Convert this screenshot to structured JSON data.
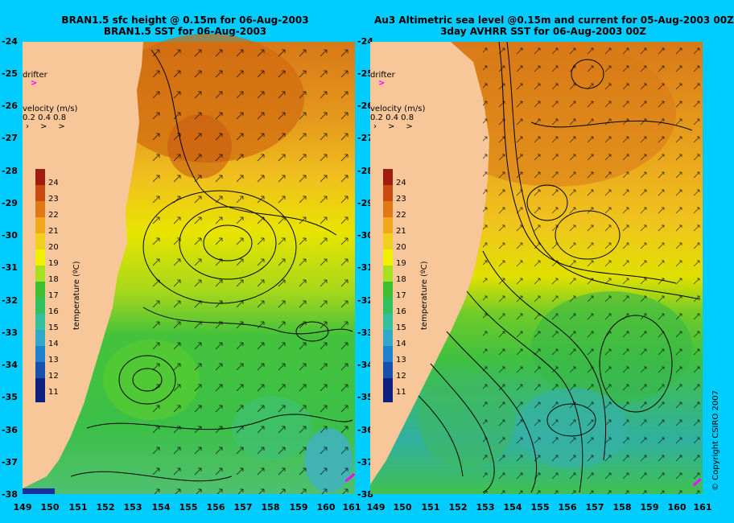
{
  "left_panel": {
    "title_line1": "BRAN1.5 sfc height @ 0.15m for 06-Aug-2003",
    "title_line2": "BRAN1.5 SST for 06-Aug-2003"
  },
  "right_panel": {
    "title_line1": "Au3 Altimetric sea level  @0.15m and current for 05-Aug-2003 00Z",
    "title_line2": "3day AVHRR SST for 06-Aug-2003 00Z"
  },
  "legend": {
    "drifter_label": "drifter",
    "velocity_label": "velocity (m/s)",
    "velocity_values": "0.2 0.4 0.8",
    "colorbar_title": "temperature (ºC)",
    "colorbar_ticks": [
      "24",
      "23",
      "22",
      "21",
      "20",
      "19",
      "18",
      "17",
      "16",
      "15",
      "14",
      "13",
      "12",
      "11"
    ]
  },
  "axes": {
    "lat_ticks": [
      "-24",
      "-25",
      "-26",
      "-27",
      "-28",
      "-29",
      "-30",
      "-31",
      "-32",
      "-33",
      "-34",
      "-35",
      "-36",
      "-37",
      "-38"
    ],
    "lon_ticks": [
      "149",
      "150",
      "151",
      "152",
      "153",
      "154",
      "155",
      "156",
      "157",
      "158",
      "159",
      "160",
      "161"
    ]
  },
  "copyright": "© Copyright CSIRO 2007",
  "colors": {
    "background": "#00ccff",
    "land": "#f7c79a",
    "drifter": "#ff00ff",
    "sst_warm": "#d06a10",
    "sst_mid": "#f2d600",
    "sst_cool": "#33c040",
    "sst_cold": "#30b0c0"
  }
}
